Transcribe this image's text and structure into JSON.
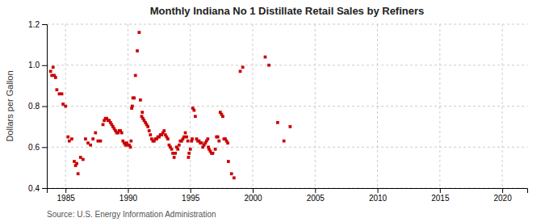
{
  "chart_data": {
    "type": "scatter",
    "title": "Monthly Indiana No 1 Distillate Retail Sales by Refiners",
    "ylabel": "Dollars per Gallon",
    "source": "Source: U.S. Energy Information Administration",
    "color": "#cc0000",
    "marker": "square",
    "grid": true,
    "xlim": [
      1983.5,
      2022
    ],
    "ylim": [
      0.4,
      1.2
    ],
    "xticks": [
      1985,
      1990,
      1995,
      2000,
      2005,
      2010,
      2015,
      2020
    ],
    "yticks": [
      0.4,
      0.6,
      0.8,
      {
        "value": 1.0,
        "label": "1.0"
      },
      1.2
    ],
    "x": [
      1983.8,
      1983.9,
      1984.0,
      1984.1,
      1984.2,
      1984.3,
      1984.5,
      1984.7,
      1984.8,
      1985.0,
      1985.2,
      1985.3,
      1985.5,
      1985.7,
      1985.8,
      1985.9,
      1986.0,
      1986.2,
      1986.4,
      1986.6,
      1986.8,
      1987.0,
      1987.2,
      1987.4,
      1987.6,
      1987.8,
      1988.0,
      1988.1,
      1988.2,
      1988.3,
      1988.4,
      1988.5,
      1988.6,
      1988.7,
      1988.8,
      1988.9,
      1989.0,
      1989.1,
      1989.2,
      1989.3,
      1989.4,
      1989.5,
      1989.6,
      1989.7,
      1989.8,
      1989.9,
      1990.0,
      1990.1,
      1990.2,
      1990.25,
      1990.3,
      1990.35,
      1990.4,
      1990.5,
      1990.6,
      1990.75,
      1990.9,
      1991.0,
      1991.1,
      1991.15,
      1991.2,
      1991.3,
      1991.4,
      1991.5,
      1991.6,
      1991.7,
      1991.8,
      1991.9,
      1992.0,
      1992.1,
      1992.2,
      1992.3,
      1992.4,
      1992.5,
      1992.6,
      1992.7,
      1992.8,
      1992.9,
      1993.0,
      1993.1,
      1993.2,
      1993.3,
      1993.4,
      1993.5,
      1993.6,
      1993.7,
      1993.8,
      1993.9,
      1994.0,
      1994.1,
      1994.2,
      1994.3,
      1994.4,
      1994.5,
      1994.6,
      1994.7,
      1994.8,
      1994.85,
      1994.9,
      1995.0,
      1995.1,
      1995.15,
      1995.2,
      1995.3,
      1995.4,
      1995.5,
      1995.6,
      1995.7,
      1995.8,
      1995.9,
      1996.0,
      1996.1,
      1996.2,
      1996.3,
      1996.4,
      1996.45,
      1996.5,
      1996.6,
      1996.7,
      1996.8,
      1997.0,
      1997.1,
      1997.2,
      1997.3,
      1997.4,
      1997.5,
      1997.6,
      1997.7,
      1997.8,
      1997.9,
      1998.0,
      1998.05,
      1998.3,
      1998.5,
      1999.0,
      1999.2,
      2001.0,
      2001.3,
      2002.0,
      2002.5,
      2003.0
    ],
    "values": [
      0.97,
      0.95,
      0.99,
      0.95,
      0.94,
      0.88,
      0.86,
      0.86,
      0.81,
      0.8,
      0.65,
      0.63,
      0.64,
      0.53,
      0.51,
      0.52,
      0.47,
      0.55,
      0.54,
      0.64,
      0.62,
      0.61,
      0.64,
      0.67,
      0.63,
      0.63,
      0.71,
      0.73,
      0.74,
      0.74,
      0.73,
      0.73,
      0.72,
      0.71,
      0.7,
      0.69,
      0.68,
      0.67,
      0.67,
      0.68,
      0.68,
      0.67,
      0.63,
      0.62,
      0.61,
      0.62,
      0.61,
      0.61,
      0.6,
      0.63,
      0.79,
      0.8,
      0.84,
      0.84,
      0.95,
      1.07,
      1.16,
      0.83,
      0.75,
      0.77,
      0.74,
      0.73,
      0.72,
      0.71,
      0.7,
      0.68,
      0.66,
      0.64,
      0.63,
      0.63,
      0.64,
      0.64,
      0.65,
      0.65,
      0.66,
      0.66,
      0.67,
      0.68,
      0.66,
      0.65,
      0.64,
      0.61,
      0.6,
      0.59,
      0.57,
      0.55,
      0.57,
      0.6,
      0.59,
      0.61,
      0.63,
      0.63,
      0.64,
      0.65,
      0.67,
      0.65,
      0.63,
      0.55,
      0.57,
      0.59,
      0.63,
      0.64,
      0.79,
      0.78,
      0.75,
      0.64,
      0.63,
      0.63,
      0.62,
      0.62,
      0.6,
      0.61,
      0.62,
      0.63,
      0.64,
      0.6,
      0.59,
      0.58,
      0.57,
      0.57,
      0.59,
      0.65,
      0.65,
      0.63,
      0.77,
      0.76,
      0.75,
      0.64,
      0.64,
      0.63,
      0.62,
      0.53,
      0.47,
      0.45,
      0.97,
      0.99,
      1.04,
      1.0,
      0.72,
      0.63,
      0.7
    ]
  }
}
